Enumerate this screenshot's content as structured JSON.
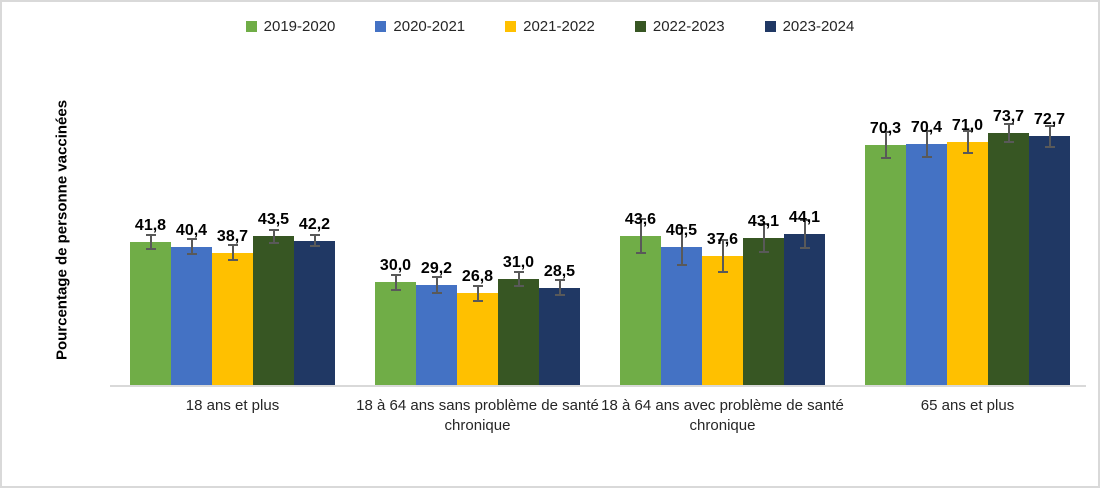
{
  "figure": {
    "background": "#FFFFFF",
    "border_color": "#D9D9D9",
    "axis_line_color": "#D9D9D9",
    "error_bar_color": "#595959"
  },
  "chart_data": {
    "type": "bar",
    "title": "",
    "xlabel": "",
    "ylabel": "Pourcentage de personne vaccinées",
    "ylim": [
      0,
      80
    ],
    "grid": false,
    "legend_position": "top",
    "decimal_separator": ",",
    "categories": [
      "18 ans et plus",
      "18 à 64 ans sans problème de santé chronique",
      "18 à 64 ans avec problème de santé chronique",
      "65 ans et plus"
    ],
    "series": [
      {
        "name": "2019-2020",
        "color": "#70AD47",
        "values": [
          41.8,
          30.0,
          43.6,
          70.3
        ],
        "labels": [
          "41,8",
          "30,0",
          "43,6",
          "70,3"
        ],
        "errors": [
          1.8,
          2.0,
          4.7,
          3.5
        ]
      },
      {
        "name": "2020-2021",
        "color": "#4472C4",
        "values": [
          40.4,
          29.2,
          40.5,
          70.4
        ],
        "labels": [
          "40,4",
          "29,2",
          "40,5",
          "70,4"
        ],
        "errors": [
          1.9,
          2.0,
          5.0,
          3.5
        ]
      },
      {
        "name": "2021-2022",
        "color": "#FFC000",
        "values": [
          38.7,
          26.8,
          37.6,
          71.0
        ],
        "labels": [
          "38,7",
          "26,8",
          "37,6",
          "71,0"
        ],
        "errors": [
          1.9,
          2.0,
          4.4,
          3.0
        ]
      },
      {
        "name": "2022-2023",
        "color": "#375623",
        "values": [
          43.5,
          31.0,
          43.1,
          73.7
        ],
        "labels": [
          "43,5",
          "31,0",
          "43,1",
          "73,7"
        ],
        "errors": [
          1.6,
          1.8,
          3.8,
          2.3
        ]
      },
      {
        "name": "2023-2024",
        "color": "#203864",
        "values": [
          42.2,
          28.5,
          44.1,
          72.7
        ],
        "labels": [
          "42,2",
          "28,5",
          "44,1",
          "72,7"
        ],
        "errors": [
          1.4,
          1.8,
          3.8,
          2.8
        ]
      }
    ]
  }
}
